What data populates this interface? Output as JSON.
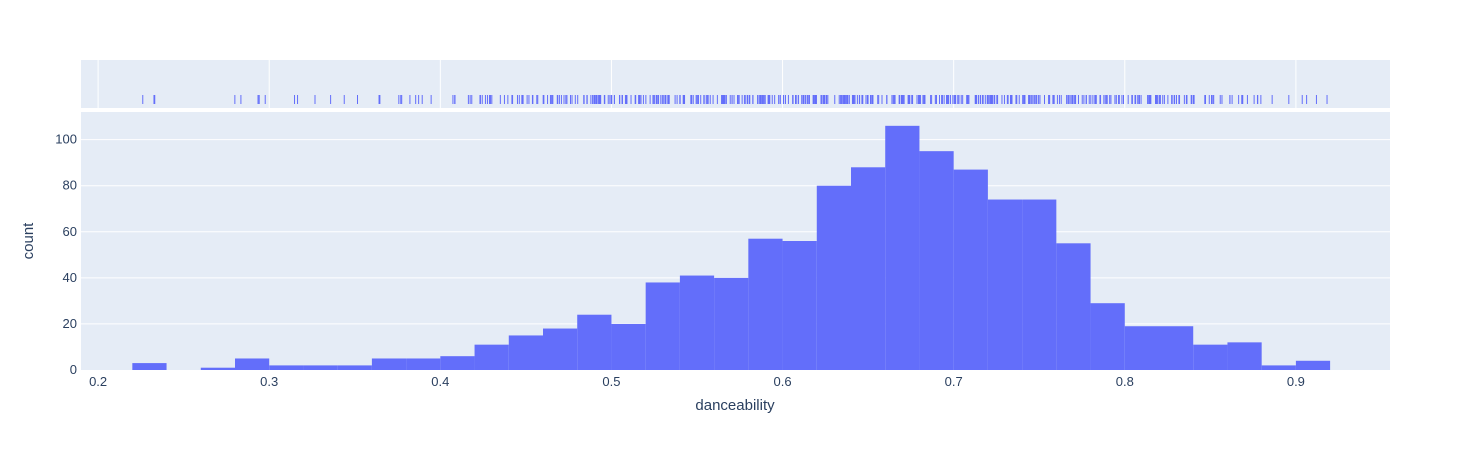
{
  "chart_data": {
    "type": "bar",
    "variant": "histogram with rug plot",
    "xlabel": "danceability",
    "ylabel": "count",
    "xlim": [
      0.19,
      0.955
    ],
    "ylim": [
      0,
      112
    ],
    "x_ticks": [
      0.2,
      0.3,
      0.4,
      0.5,
      0.6,
      0.7,
      0.8,
      0.9
    ],
    "x_tick_labels": [
      "0.2",
      "0.3",
      "0.4",
      "0.5",
      "0.6",
      "0.7",
      "0.8",
      "0.9"
    ],
    "y_ticks": [
      0,
      20,
      40,
      60,
      80,
      100
    ],
    "y_tick_labels": [
      "0",
      "20",
      "40",
      "60",
      "80",
      "100"
    ],
    "bin_width": 0.02,
    "bin_starts": [
      0.22,
      0.24,
      0.26,
      0.28,
      0.3,
      0.32,
      0.34,
      0.36,
      0.38,
      0.4,
      0.42,
      0.44,
      0.46,
      0.48,
      0.5,
      0.52,
      0.54,
      0.56,
      0.58,
      0.6,
      0.62,
      0.64,
      0.66,
      0.68,
      0.7,
      0.72,
      0.74,
      0.76,
      0.78,
      0.8,
      0.82,
      0.84,
      0.86,
      0.88,
      0.9
    ],
    "values": [
      3,
      0,
      1,
      5,
      2,
      2,
      2,
      5,
      5,
      6,
      11,
      15,
      18,
      24,
      20,
      38,
      41,
      40,
      57,
      56,
      80,
      88,
      106,
      95,
      87,
      74,
      74,
      55,
      29,
      19,
      19,
      11,
      12,
      2,
      4
    ],
    "rug_range": [
      0.225,
      0.92
    ],
    "grid": true,
    "colors": {
      "bar": "#636efa",
      "rug": "#636efa",
      "plot_background": "#e5ecf6",
      "grid": "#ffffff",
      "text": "#2a3f5f"
    }
  }
}
